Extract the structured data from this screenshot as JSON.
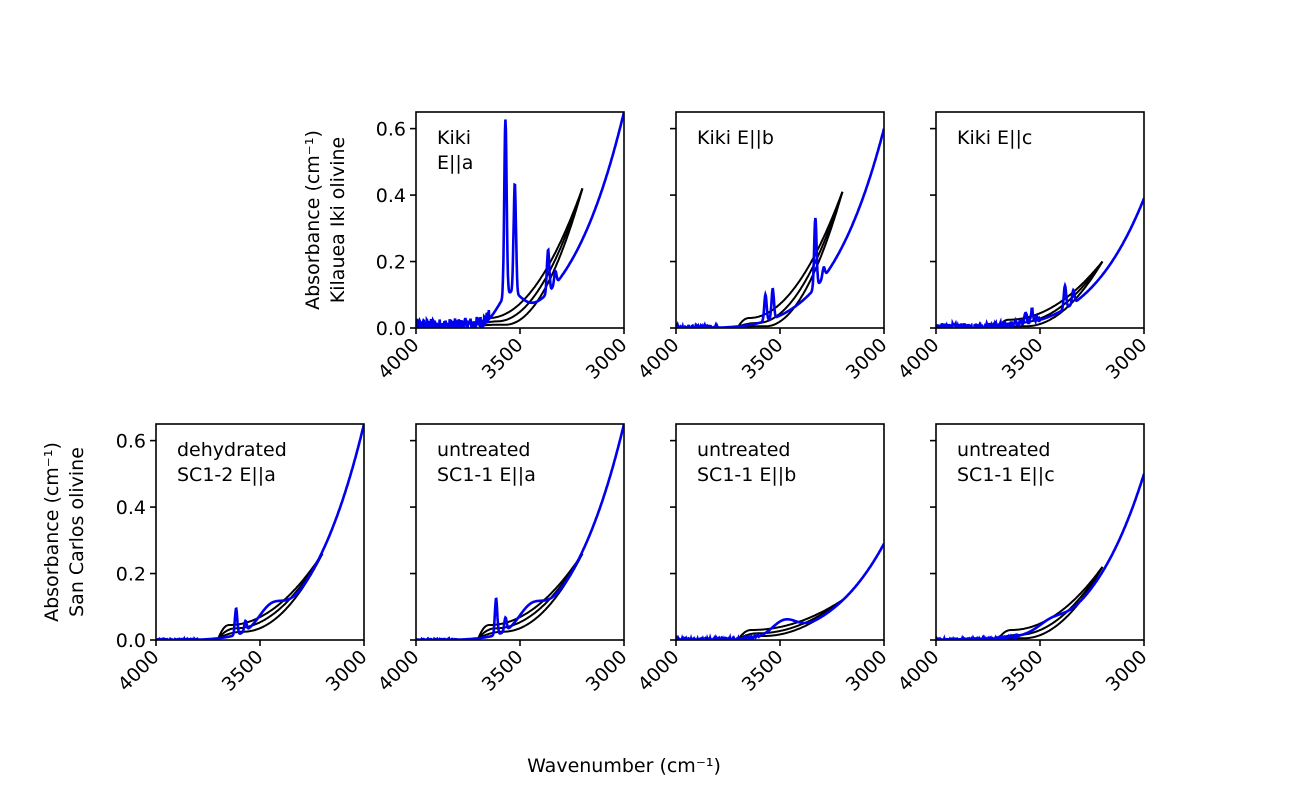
{
  "figure": {
    "xlabel": "Wavenumber (cm⁻¹)",
    "row_ylabels": [
      [
        "Absorbance (cm⁻¹)",
        "Kilauea Iki olivine"
      ],
      [
        "Absorbance (cm⁻¹)",
        "San Carlos olivine"
      ]
    ]
  },
  "chart_data": [
    {
      "type": "line",
      "row": 0,
      "col": 1,
      "label_lines": [
        "Kiki",
        "E||a"
      ],
      "xlim": [
        4000,
        3000
      ],
      "ylim": [
        0,
        0.65
      ],
      "xticks": [
        4000,
        3500,
        3000
      ],
      "yticks": [
        0.0,
        0.2,
        0.4,
        0.6
      ],
      "baselines": {
        "start": 3700,
        "end": 3200,
        "end_value": 0.42,
        "min_values": [
          0.03,
          0.02,
          0.01
        ],
        "min_positions": [
          3650,
          3610,
          3570
        ]
      },
      "spectrum": {
        "edge_value": 0.65,
        "noise_region": [
          4000,
          3650
        ],
        "noise_amplitude": 0.04,
        "shoulder": {
          "x": 3550,
          "value": 0.08
        },
        "peaks": [
          {
            "x": 3570,
            "height": 0.53
          },
          {
            "x": 3525,
            "height": 0.33
          },
          {
            "x": 3365,
            "height": 0.13
          },
          {
            "x": 3330,
            "height": 0.04
          }
        ]
      }
    },
    {
      "type": "line",
      "row": 0,
      "col": 2,
      "label_lines": [
        "Kiki E||b"
      ],
      "xlim": [
        4000,
        3000
      ],
      "ylim": [
        0,
        0.65
      ],
      "xticks": [
        4000,
        3500,
        3000
      ],
      "yticks": [
        0.0,
        0.2,
        0.4,
        0.6
      ],
      "baselines": {
        "start": 3700,
        "end": 3200,
        "end_value": 0.41,
        "min_values": [
          0.03,
          0.015,
          0.005
        ],
        "min_positions": [
          3650,
          3610,
          3570
        ]
      },
      "spectrum": {
        "edge_value": 0.6,
        "noise_region": [
          4000,
          3800
        ],
        "noise_amplitude": 0.01,
        "peaks": [
          {
            "x": 3570,
            "height": 0.08
          },
          {
            "x": 3535,
            "height": 0.09
          },
          {
            "x": 3330,
            "height": 0.21
          },
          {
            "x": 3290,
            "height": 0.03
          }
        ]
      }
    },
    {
      "type": "line",
      "row": 0,
      "col": 3,
      "label_lines": [
        "Kiki E||c"
      ],
      "xlim": [
        4000,
        3000
      ],
      "ylim": [
        0,
        0.65
      ],
      "xticks": [
        4000,
        3500,
        3000
      ],
      "yticks": [
        0.0,
        0.2,
        0.4,
        0.6
      ],
      "baselines": {
        "start": 3700,
        "end": 3200,
        "end_value": 0.2,
        "min_values": [
          0.025,
          0.015,
          0.005
        ],
        "min_positions": [
          3650,
          3610,
          3570
        ]
      },
      "spectrum": {
        "edge_value": 0.39,
        "noise_region": [
          4000,
          3500
        ],
        "noise_amplitude": 0.02,
        "peaks": [
          {
            "x": 3570,
            "height": 0.03
          },
          {
            "x": 3540,
            "height": 0.03
          },
          {
            "x": 3380,
            "height": 0.07
          },
          {
            "x": 3340,
            "height": 0.04
          }
        ]
      }
    },
    {
      "type": "line",
      "row": 1,
      "col": 0,
      "label_lines": [
        "dehydrated",
        "SC1-2  E||a"
      ],
      "xlim": [
        4000,
        3000
      ],
      "ylim": [
        0,
        0.65
      ],
      "xticks": [
        4000,
        3500,
        3000
      ],
      "yticks": [
        0.0,
        0.2,
        0.4,
        0.6
      ],
      "baselines": {
        "start": 3700,
        "end": 3200,
        "end_value": 0.26,
        "min_values": [
          0.045,
          0.035,
          0.025
        ],
        "min_positions": [
          3650,
          3620,
          3580
        ]
      },
      "spectrum": {
        "edge_value": 0.65,
        "noise_region": [
          4000,
          3800
        ],
        "noise_amplitude": 0.004,
        "shoulder": {
          "x": 3450,
          "value": 0.05
        },
        "peaks": [
          {
            "x": 3615,
            "height": 0.08
          },
          {
            "x": 3570,
            "height": 0.03
          }
        ]
      }
    },
    {
      "type": "line",
      "row": 1,
      "col": 1,
      "label_lines": [
        "untreated",
        "SC1-1 E||a"
      ],
      "xlim": [
        4000,
        3000
      ],
      "ylim": [
        0,
        0.65
      ],
      "xticks": [
        4000,
        3500,
        3000
      ],
      "yticks": [
        0.0,
        0.2,
        0.4,
        0.6
      ],
      "baselines": {
        "start": 3700,
        "end": 3200,
        "end_value": 0.26,
        "min_values": [
          0.045,
          0.035,
          0.025
        ],
        "min_positions": [
          3650,
          3620,
          3580
        ]
      },
      "spectrum": {
        "edge_value": 0.65,
        "noise_region": [
          4000,
          3800
        ],
        "noise_amplitude": 0.004,
        "shoulder": {
          "x": 3450,
          "value": 0.05
        },
        "peaks": [
          {
            "x": 3615,
            "height": 0.11
          },
          {
            "x": 3570,
            "height": 0.04
          }
        ]
      }
    },
    {
      "type": "line",
      "row": 1,
      "col": 2,
      "label_lines": [
        "untreated",
        "SC1-1 E||b"
      ],
      "xlim": [
        4000,
        3000
      ],
      "ylim": [
        0,
        0.65
      ],
      "xticks": [
        4000,
        3500,
        3000
      ],
      "yticks": [
        0.0,
        0.2,
        0.4,
        0.6
      ],
      "baselines": {
        "start": 3700,
        "end": 3200,
        "end_value": 0.12,
        "min_values": [
          0.03,
          0.02,
          0.012
        ],
        "min_positions": [
          3640,
          3610,
          3580
        ]
      },
      "spectrum": {
        "edge_value": 0.29,
        "noise_region": [
          4000,
          3600
        ],
        "noise_amplitude": 0.008,
        "shoulder": {
          "x": 3480,
          "value": 0.04
        },
        "peaks": []
      }
    },
    {
      "type": "line",
      "row": 1,
      "col": 3,
      "label_lines": [
        "untreated",
        "SC1-1 E||c"
      ],
      "xlim": [
        4000,
        3000
      ],
      "ylim": [
        0,
        0.65
      ],
      "xticks": [
        4000,
        3500,
        3000
      ],
      "yticks": [
        0.0,
        0.2,
        0.4,
        0.6
      ],
      "baselines": {
        "start": 3700,
        "end": 3200,
        "end_value": 0.22,
        "min_values": [
          0.03,
          0.015,
          0.005
        ],
        "min_positions": [
          3640,
          3610,
          3580
        ]
      },
      "spectrum": {
        "edge_value": 0.5,
        "noise_region": [
          4000,
          3600
        ],
        "noise_amplitude": 0.006,
        "shoulder": {
          "x": 3450,
          "value": 0.02
        },
        "peaks": []
      }
    }
  ],
  "colors": {
    "spectrum": "#0000ee",
    "baseline": "#000000",
    "axes": "#000000"
  }
}
